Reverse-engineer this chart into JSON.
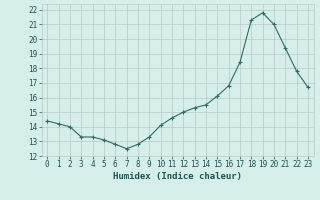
{
  "x": [
    0,
    1,
    2,
    3,
    4,
    5,
    6,
    7,
    8,
    9,
    10,
    11,
    12,
    13,
    14,
    15,
    16,
    17,
    18,
    19,
    20,
    21,
    22,
    23
  ],
  "y": [
    14.4,
    14.2,
    14.0,
    13.3,
    13.3,
    13.1,
    12.8,
    12.5,
    12.8,
    13.3,
    14.1,
    14.6,
    15.0,
    15.3,
    15.5,
    16.1,
    16.8,
    18.4,
    21.3,
    21.8,
    21.0,
    19.4,
    17.8,
    16.7
  ],
  "line_color": "#2e6b62",
  "marker": "+",
  "marker_size": 3,
  "xlabel": "Humidex (Indice chaleur)",
  "xlim": [
    -0.5,
    23.5
  ],
  "ylim": [
    12,
    22.4
  ],
  "yticks": [
    12,
    13,
    14,
    15,
    16,
    17,
    18,
    19,
    20,
    21,
    22
  ],
  "xticks": [
    0,
    1,
    2,
    3,
    4,
    5,
    6,
    7,
    8,
    9,
    10,
    11,
    12,
    13,
    14,
    15,
    16,
    17,
    18,
    19,
    20,
    21,
    22,
    23
  ],
  "bg_color": "#d5eeea",
  "grid_color": "#b8c8c4",
  "text_color": "#1a5550",
  "label_fontsize": 6.5,
  "tick_fontsize": 5.5,
  "linewidth": 0.8,
  "markeredgewidth": 0.8
}
